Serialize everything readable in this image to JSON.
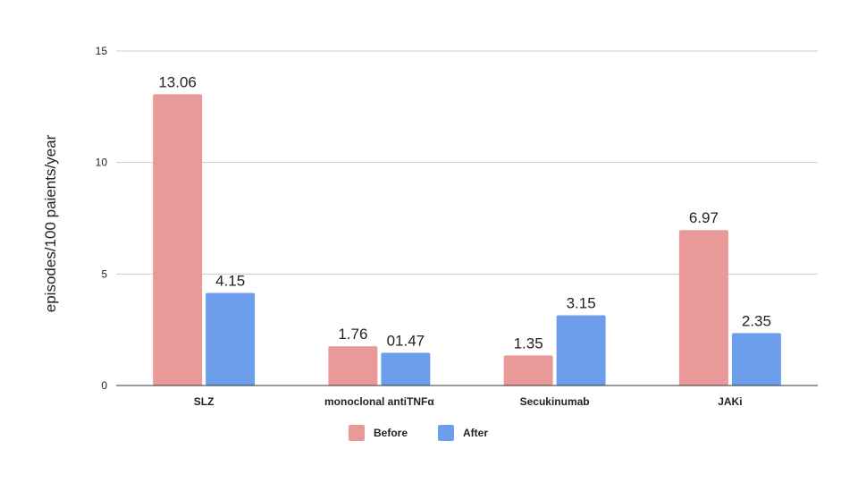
{
  "chart_data": {
    "type": "bar",
    "title": "",
    "xlabel": "",
    "ylabel": "episodes/100 paients/year",
    "ylim": [
      0,
      15
    ],
    "yticks": [
      0,
      5,
      10,
      15
    ],
    "categories": [
      "SLZ",
      "monoclonal antiTNFα",
      "Secukinumab",
      "JAKi"
    ],
    "series": [
      {
        "name": "Before",
        "color": "#ea9999",
        "values": [
          13.06,
          1.76,
          1.35,
          6.97
        ],
        "labels": [
          "13.06",
          "1.76",
          "1.35",
          "6.97"
        ]
      },
      {
        "name": "After",
        "color": "#6d9eeb",
        "values": [
          4.15,
          1.47,
          3.15,
          2.35
        ],
        "labels": [
          "4.15",
          "01.47",
          "3.15",
          "2.35"
        ]
      }
    ],
    "grid": true,
    "legend_position": "bottom-center"
  }
}
